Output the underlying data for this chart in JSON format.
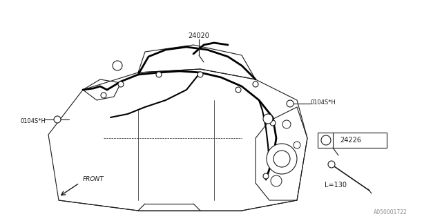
{
  "bg_color": "#ffffff",
  "line_color": "#1a1a1a",
  "label_24020": "24020",
  "label_0104SH_left": "0104S*H",
  "label_0104SH_right": "0104S*H",
  "label_24226": "24226",
  "label_L130": "L=130",
  "label_FRONT": "FRONT",
  "watermark": "A050001722",
  "fig_width": 6.4,
  "fig_height": 3.2,
  "dpi": 100
}
